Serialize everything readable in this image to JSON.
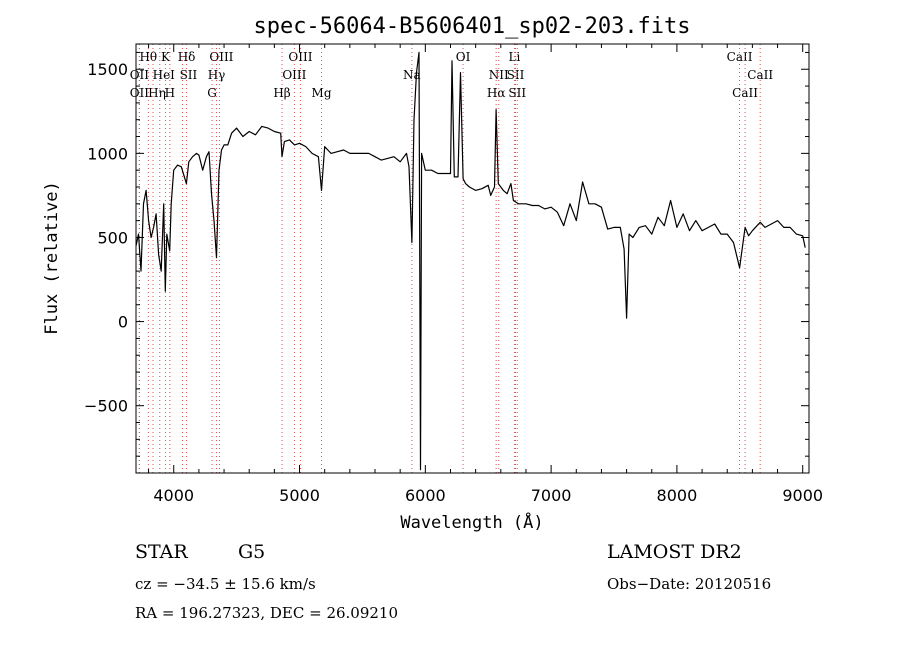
{
  "chart_data": {
    "type": "line",
    "title": "spec-56064-B5606401_sp02-203.fits",
    "xlabel": "Wavelength (Å)",
    "ylabel": "Flux (relative)",
    "xlim": [
      3700,
      9050
    ],
    "ylim": [
      -900,
      1650
    ],
    "x_ticks": [
      4000,
      5000,
      6000,
      7000,
      8000,
      9000
    ],
    "y_ticks": [
      -500,
      0,
      500,
      1000,
      1500
    ],
    "grid": false,
    "legend": "none",
    "colors": {
      "spectrum": "#000000",
      "line_markers": "#e05050"
    },
    "series": [
      {
        "x": [
          3700,
          3720,
          3740,
          3760,
          3780,
          3800,
          3820,
          3840,
          3860,
          3880,
          3900,
          3920,
          3933,
          3945,
          3968,
          3980,
          4000,
          4030,
          4060,
          4101,
          4120,
          4150,
          4180,
          4200,
          4230,
          4260,
          4280,
          4300,
          4320,
          4340,
          4360,
          4380,
          4400,
          4430,
          4460,
          4500,
          4550,
          4600,
          4650,
          4700,
          4750,
          4800,
          4850,
          4861,
          4880,
          4920,
          4960,
          5000,
          5050,
          5100,
          5150,
          5175,
          5200,
          5250,
          5300,
          5350,
          5400,
          5450,
          5500,
          5550,
          5600,
          5650,
          5700,
          5750,
          5800,
          5850,
          5870,
          5893,
          5910,
          5930,
          5950,
          5962,
          5970,
          6000,
          6050,
          6100,
          6150,
          6200,
          6212,
          6230,
          6260,
          6280,
          6300,
          6320,
          6350,
          6400,
          6450,
          6500,
          6520,
          6550,
          6563,
          6580,
          6620,
          6650,
          6680,
          6700,
          6720,
          6740,
          6760,
          6800,
          6850,
          6900,
          6950,
          7000,
          7050,
          7100,
          7150,
          7200,
          7250,
          7300,
          7350,
          7400,
          7450,
          7500,
          7550,
          7580,
          7600,
          7620,
          7650,
          7700,
          7750,
          7800,
          7850,
          7900,
          7950,
          8000,
          8050,
          8100,
          8150,
          8200,
          8250,
          8300,
          8350,
          8400,
          8450,
          8498,
          8542,
          8570,
          8600,
          8662,
          8700,
          8750,
          8800,
          8850,
          8900,
          8950,
          9000,
          9020
        ],
        "values": [
          450,
          520,
          300,
          700,
          780,
          600,
          500,
          560,
          640,
          400,
          300,
          700,
          180,
          520,
          420,
          700,
          900,
          930,
          920,
          820,
          950,
          980,
          1000,
          990,
          900,
          980,
          1010,
          760,
          600,
          380,
          900,
          1020,
          1050,
          1050,
          1120,
          1150,
          1100,
          1130,
          1110,
          1160,
          1150,
          1130,
          1120,
          980,
          1070,
          1080,
          1050,
          1060,
          1040,
          1000,
          980,
          780,
          1040,
          1000,
          1010,
          1020,
          1000,
          1000,
          1000,
          1000,
          980,
          960,
          970,
          980,
          950,
          1000,
          920,
          470,
          1200,
          1480,
          1600,
          -880,
          1000,
          900,
          900,
          880,
          880,
          880,
          1550,
          860,
          860,
          1480,
          850,
          820,
          800,
          780,
          790,
          810,
          750,
          800,
          1260,
          820,
          780,
          760,
          820,
          720,
          710,
          700,
          700,
          700,
          690,
          690,
          670,
          680,
          650,
          570,
          700,
          600,
          830,
          700,
          700,
          680,
          550,
          560,
          560,
          430,
          20,
          520,
          500,
          560,
          570,
          520,
          620,
          570,
          720,
          560,
          640,
          540,
          600,
          540,
          560,
          580,
          520,
          520,
          470,
          320,
          560,
          510,
          540,
          590,
          560,
          580,
          600,
          560,
          560,
          520,
          510,
          440
        ]
      }
    ],
    "line_markers": [
      {
        "label": "Hθ",
        "wavelength": 3798
      },
      {
        "label": "K",
        "wavelength": 3934
      },
      {
        "label": "Hδ",
        "wavelength": 4102
      },
      {
        "label": "OII",
        "wavelength": 3727
      },
      {
        "label": "HeI",
        "wavelength": 3889
      },
      {
        "label": "SII",
        "wavelength": 4069
      },
      {
        "label": "OII",
        "wavelength": 3727
      },
      {
        "label": "Hη",
        "wavelength": 3835
      },
      {
        "label": "H",
        "wavelength": 3969
      },
      {
        "label": "OIII",
        "wavelength": 4363
      },
      {
        "label": "Hγ",
        "wavelength": 4340
      },
      {
        "label": "G",
        "wavelength": 4305
      },
      {
        "label": "OIII",
        "wavelength": 5007
      },
      {
        "label": "OIII",
        "wavelength": 4959
      },
      {
        "label": "Hβ",
        "wavelength": 4861
      },
      {
        "label": "Mg",
        "wavelength": 5175
      },
      {
        "label": "Na",
        "wavelength": 5893
      },
      {
        "label": "OI",
        "wavelength": 6300
      },
      {
        "label": "Li",
        "wavelength": 6708
      },
      {
        "label": "NII",
        "wavelength": 6584
      },
      {
        "label": "SII",
        "wavelength": 6717
      },
      {
        "label": "Hα",
        "wavelength": 6563
      },
      {
        "label": "SII",
        "wavelength": 6731
      },
      {
        "label": "CaII",
        "wavelength": 8498
      },
      {
        "label": "CaII",
        "wavelength": 8662
      },
      {
        "label": "CaII",
        "wavelength": 8542
      }
    ]
  },
  "info": {
    "object_class": "STAR",
    "subclass": "G5",
    "survey": "LAMOST DR2",
    "cz": "cz = −34.5 ± 15.6 km/s",
    "obs_date": "Obs−Date: 20120516",
    "coords": "RA = 196.27323, DEC =  26.09210"
  }
}
